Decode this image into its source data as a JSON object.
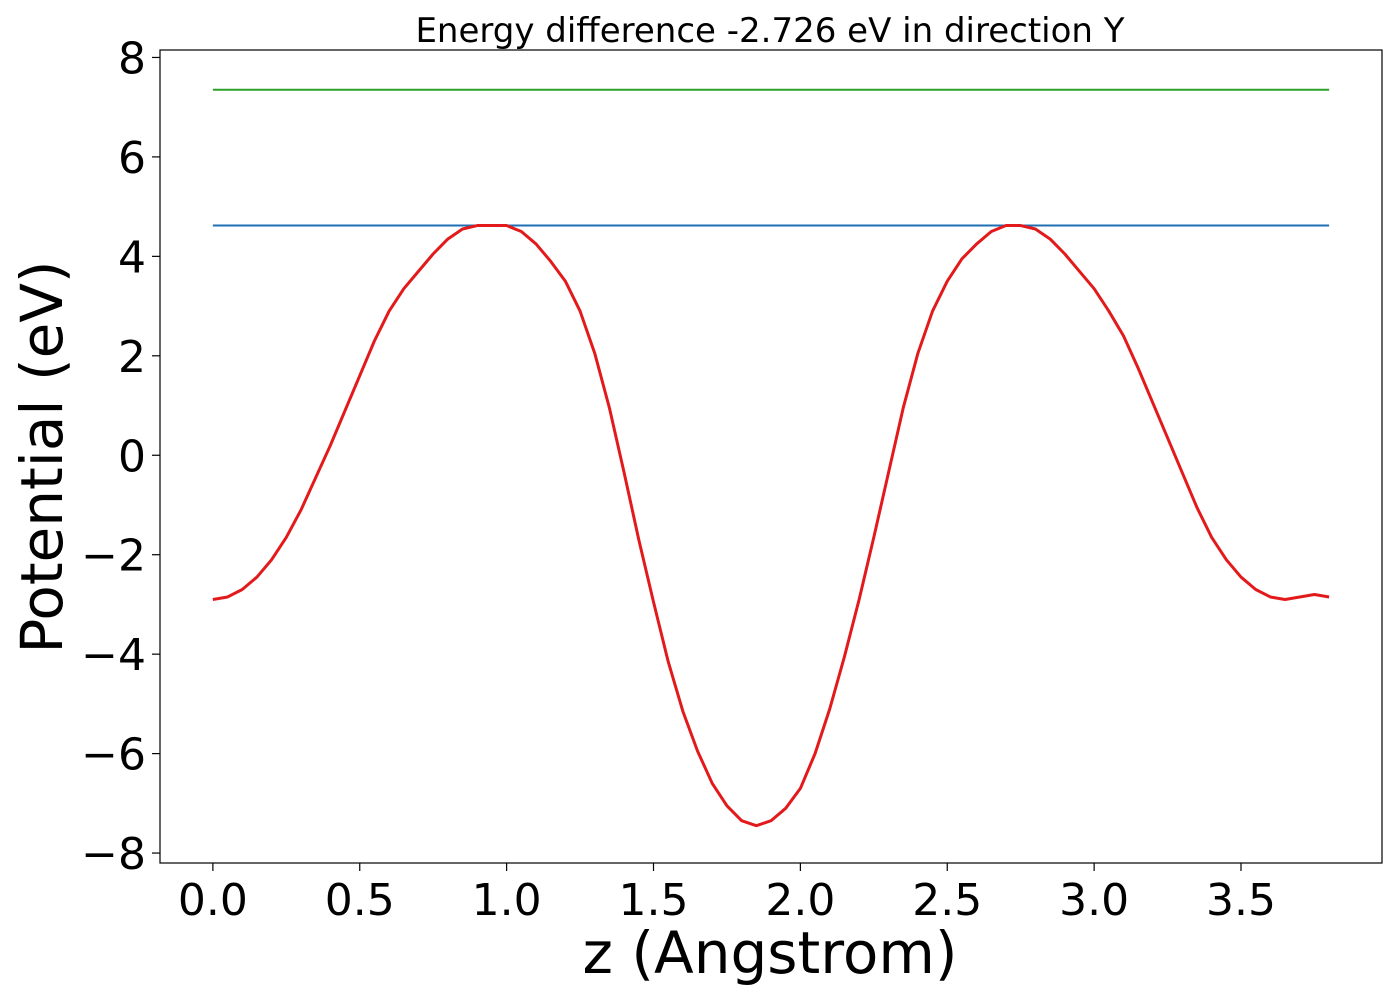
{
  "chart_data": {
    "type": "line",
    "title": "Energy difference -2.726 eV in direction Y",
    "xlabel": "z (Angstrom)",
    "ylabel": "Potential (eV)",
    "xlim": [
      -0.18,
      3.98
    ],
    "ylim": [
      -8.2,
      8.15
    ],
    "xticks": [
      0.0,
      0.5,
      1.0,
      1.5,
      2.0,
      2.5,
      3.0,
      3.5
    ],
    "xtick_labels": [
      "0.0",
      "0.5",
      "1.0",
      "1.5",
      "2.0",
      "2.5",
      "3.0",
      "3.5"
    ],
    "yticks": [
      -8,
      -6,
      -4,
      -2,
      0,
      2,
      4,
      6,
      8
    ],
    "ytick_labels": [
      "−8",
      "−6",
      "−4",
      "−2",
      "0",
      "2",
      "4",
      "6",
      "8"
    ],
    "grid": false,
    "series": [
      {
        "color": "#e31a1c",
        "x": [
          0.0,
          0.05,
          0.1,
          0.15,
          0.2,
          0.25,
          0.3,
          0.35,
          0.4,
          0.45,
          0.5,
          0.55,
          0.6,
          0.65,
          0.7,
          0.75,
          0.8,
          0.85,
          0.9,
          0.95,
          1.0,
          1.05,
          1.1,
          1.15,
          1.2,
          1.25,
          1.3,
          1.35,
          1.4,
          1.45,
          1.5,
          1.55,
          1.6,
          1.65,
          1.7,
          1.75,
          1.8,
          1.85,
          1.9,
          1.95,
          2.0,
          2.05,
          2.1,
          2.15,
          2.2,
          2.25,
          2.3,
          2.35,
          2.4,
          2.45,
          2.5,
          2.55,
          2.6,
          2.65,
          2.7,
          2.75,
          2.8,
          2.85,
          2.9,
          2.95,
          3.0,
          3.05,
          3.1,
          3.15,
          3.2,
          3.25,
          3.3,
          3.35,
          3.4,
          3.45,
          3.5,
          3.55,
          3.6,
          3.65,
          3.7,
          3.75,
          3.8
        ],
        "values": [
          -2.9,
          -2.85,
          -2.7,
          -2.45,
          -2.1,
          -1.65,
          -1.1,
          -0.45,
          0.2,
          0.9,
          1.6,
          2.3,
          2.9,
          3.35,
          3.7,
          4.05,
          4.35,
          4.55,
          4.62,
          4.62,
          4.62,
          4.5,
          4.25,
          3.9,
          3.5,
          2.9,
          2.05,
          0.95,
          -0.35,
          -1.7,
          -2.95,
          -4.15,
          -5.15,
          -5.95,
          -6.6,
          -7.05,
          -7.35,
          -7.45,
          -7.35,
          -7.1,
          -6.7,
          -6.0,
          -5.1,
          -4.05,
          -2.9,
          -1.65,
          -0.35,
          0.95,
          2.05,
          2.9,
          3.5,
          3.95,
          4.25,
          4.5,
          4.62,
          4.62,
          4.55,
          4.35,
          4.05,
          3.7,
          3.35,
          2.9,
          2.4,
          1.75,
          1.05,
          0.35,
          -0.35,
          -1.05,
          -1.65,
          -2.1,
          -2.45,
          -2.7,
          -2.85,
          -2.9,
          -2.85,
          -2.8,
          -2.85
        ]
      },
      {
        "color": "#1f6fb4",
        "x": [
          0.0,
          3.8
        ],
        "values": [
          4.62,
          4.62
        ]
      },
      {
        "color": "#2ca02c",
        "x": [
          0.0,
          3.8
        ],
        "values": [
          7.35,
          7.35
        ]
      }
    ]
  }
}
